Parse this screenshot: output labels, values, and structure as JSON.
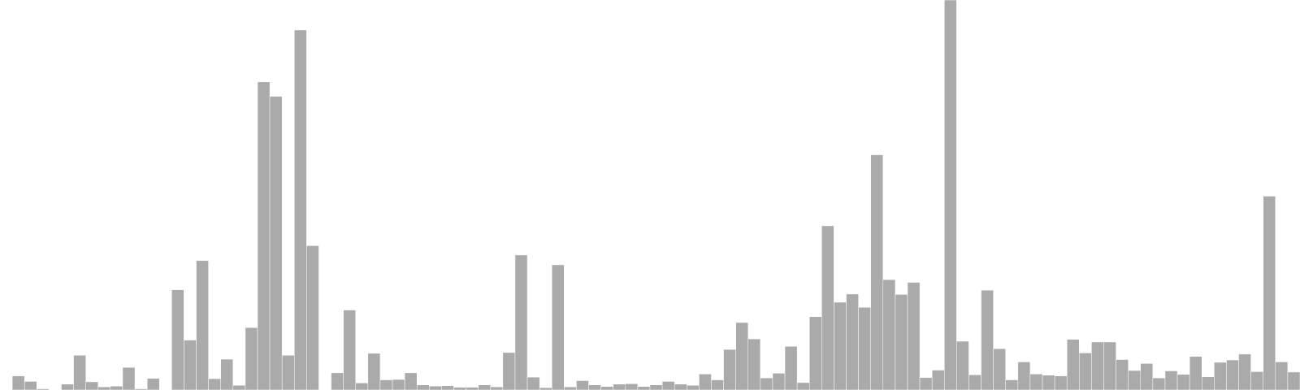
{
  "chart_data": {
    "type": "bar",
    "title": "",
    "xlabel": "",
    "ylabel": "",
    "ylim": [
      0,
      100
    ],
    "grid": false,
    "legend": "none",
    "bar_color": "#aaaaaa",
    "values": [
      0,
      3.6,
      2.2,
      0.3,
      0.1,
      1.5,
      8.9,
      2.1,
      0.8,
      1.0,
      5.8,
      0.3,
      3.0,
      0,
      25.7,
      12.8,
      33.2,
      2.9,
      7.9,
      1.2,
      16.0,
      79.0,
      75.3,
      8.9,
      92.3,
      37.0,
      0,
      4.4,
      20.5,
      1.8,
      9.4,
      2.6,
      2.7,
      4.4,
      1.3,
      1.0,
      1.1,
      0.7,
      0.7,
      1.3,
      0.8,
      9.6,
      34.6,
      3.3,
      0.6,
      32.1,
      0.8,
      2.4,
      1.3,
      0.9,
      1.5,
      1.6,
      0.9,
      1.3,
      2.2,
      1.5,
      1.2,
      4.1,
      2.6,
      10.4,
      17.3,
      13.1,
      3.1,
      4.3,
      11.2,
      1.9,
      18.8,
      42.1,
      22.5,
      24.6,
      21.2,
      60.3,
      28.3,
      24.5,
      27.6,
      3.2,
      5.1,
      100,
      12.5,
      3.9,
      25.6,
      10.6,
      2.6,
      7.2,
      4.1,
      3.8,
      3.6,
      13.0,
      9.5,
      12.3,
      12.3,
      7.8,
      5.0,
      6.8,
      3.1,
      4.9,
      4.0,
      8.6,
      3.4,
      7.1,
      7.7,
      9.2,
      4.7,
      49.7,
      7.2,
      4.6
    ]
  }
}
